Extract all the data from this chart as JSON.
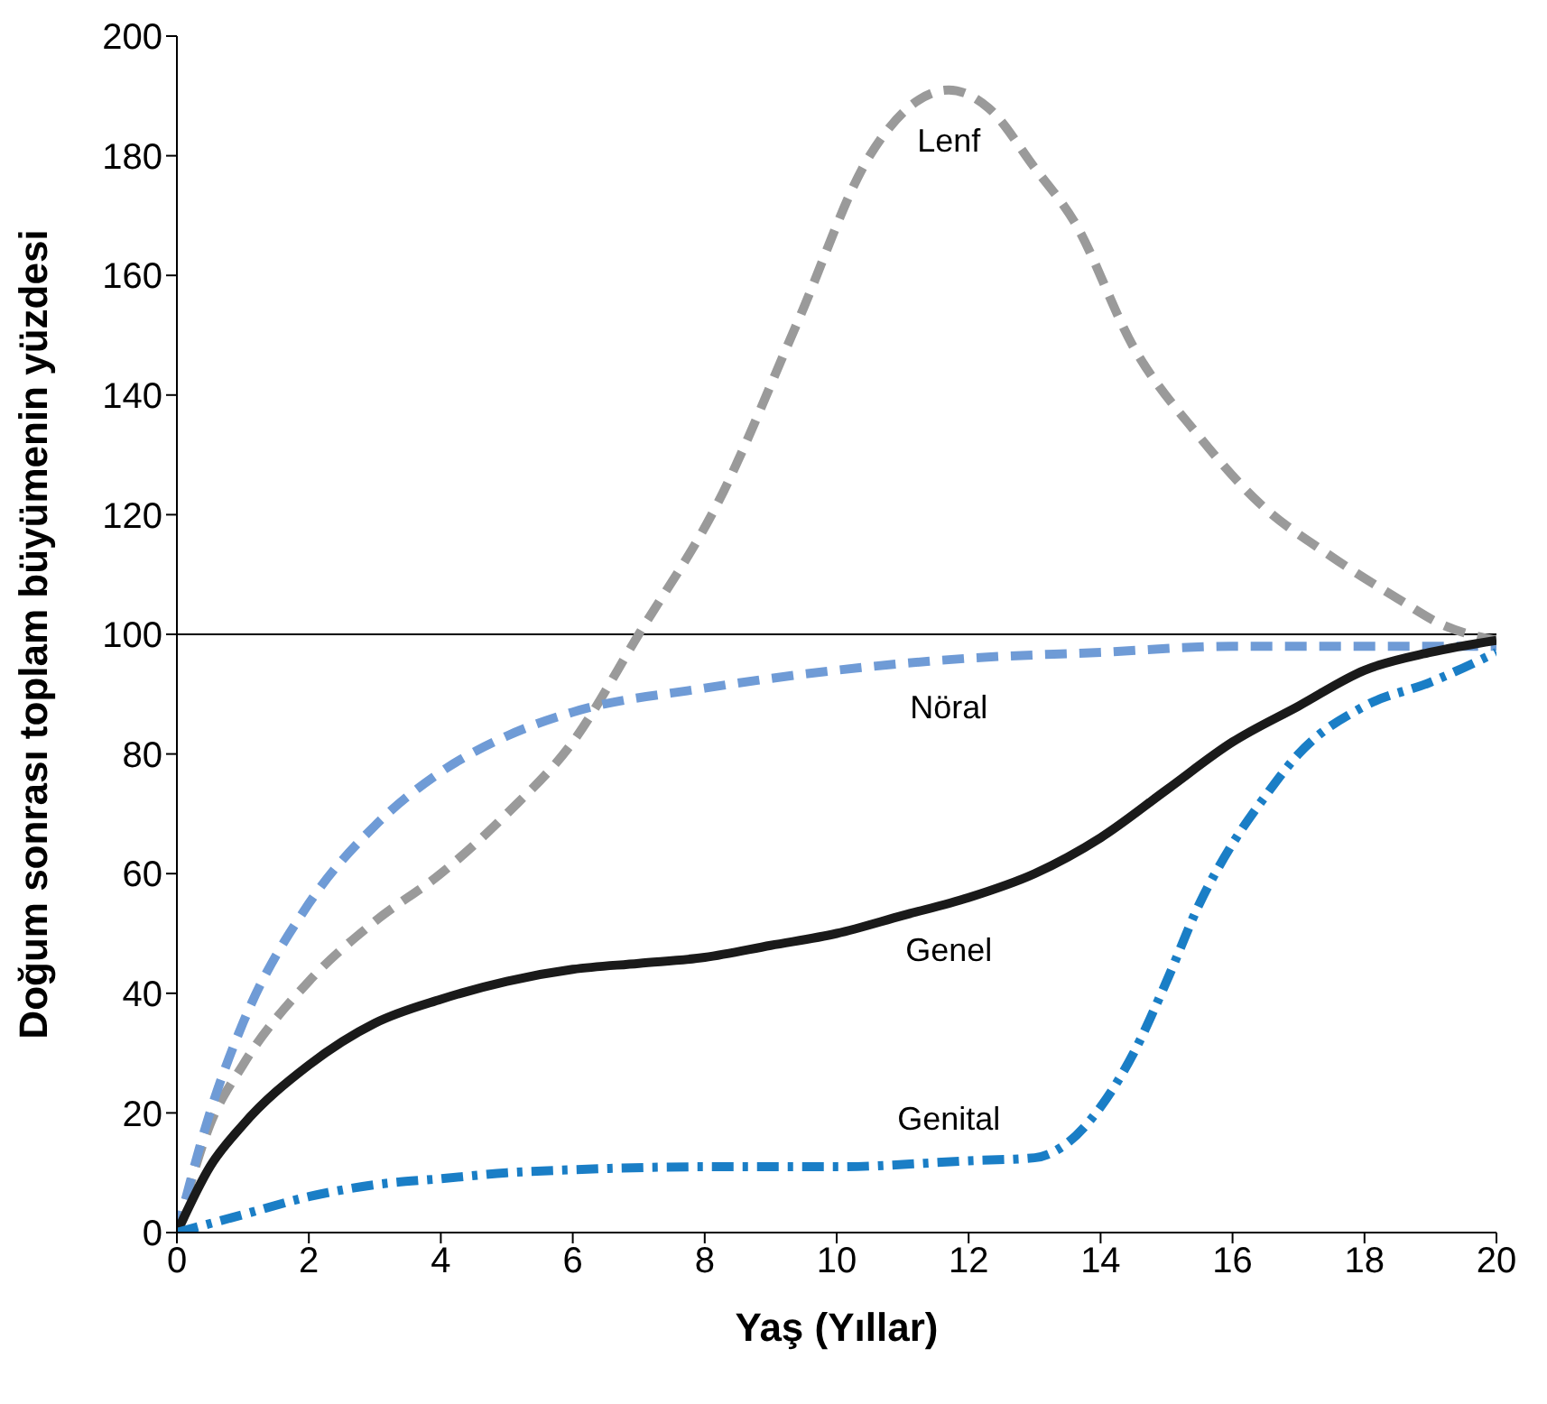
{
  "chart_data": {
    "type": "line",
    "xlabel": "Yaş (Yıllar)",
    "ylabel": "Doğum sonrası toplam büyümenin yüzdesi",
    "xlim": [
      0,
      20
    ],
    "xticks": [
      0,
      2,
      4,
      6,
      8,
      10,
      12,
      14,
      16,
      18,
      20
    ],
    "ylim": [
      0,
      200
    ],
    "yticks": [
      0,
      20,
      40,
      60,
      80,
      100,
      120,
      140,
      160,
      180,
      200
    ],
    "grid": false,
    "legend": false,
    "marker": "none",
    "series": [
      {
        "name": "Lenf",
        "color": "#9a9a9a",
        "line_style": "dashed",
        "x": [
          0,
          0.5,
          1,
          2,
          3,
          4,
          5,
          6,
          7,
          8.2,
          9.4,
          10.5,
          11.2,
          11.7,
          12.3,
          13,
          13.6,
          14.5,
          15.5,
          16.4,
          17.5,
          18.5,
          19.2,
          20
        ],
        "values": [
          0,
          18,
          28,
          42,
          52,
          60,
          70,
          82,
          100,
          122,
          152,
          180,
          189,
          191,
          188,
          178,
          169,
          148,
          133,
          122,
          113,
          106,
          101.5,
          99
        ]
      },
      {
        "name": "Nöral",
        "color": "#6f9bd6",
        "line_style": "dashed",
        "x": [
          0,
          0.5,
          1,
          2,
          3,
          4,
          5,
          6,
          8,
          10,
          12,
          14,
          16,
          18,
          20
        ],
        "values": [
          0,
          20,
          35,
          55,
          68,
          77,
          83,
          87,
          91,
          94,
          96,
          97,
          98,
          98,
          98
        ]
      },
      {
        "name": "Genel",
        "color": "#1a1a1a",
        "line_style": "solid",
        "x": [
          0,
          0.5,
          1,
          2,
          3,
          4,
          5,
          6,
          7,
          8,
          9,
          10,
          11,
          12,
          13,
          14,
          15,
          16,
          17,
          18,
          19,
          20
        ],
        "values": [
          0,
          11,
          18,
          28,
          35,
          39,
          42,
          44,
          45,
          46,
          48,
          50,
          53,
          56,
          60,
          66,
          74,
          82,
          88,
          94,
          97,
          99
        ]
      },
      {
        "name": "Genital",
        "color": "#1a7ec6",
        "line_style": "dashdot",
        "x": [
          0,
          1,
          2,
          3,
          4,
          5,
          6,
          8,
          10,
          12,
          13,
          13.5,
          14,
          14.5,
          15,
          15.5,
          16,
          16.5,
          17,
          18,
          19,
          20
        ],
        "values": [
          0,
          3,
          6,
          8,
          9,
          10,
          10.5,
          11,
          11,
          12,
          12.5,
          15,
          21,
          30,
          42,
          55,
          65,
          73,
          80,
          88,
          92,
          97
        ]
      }
    ],
    "ref_lines": [
      {
        "axis": "y",
        "value": 100,
        "color": "#000000"
      }
    ]
  }
}
